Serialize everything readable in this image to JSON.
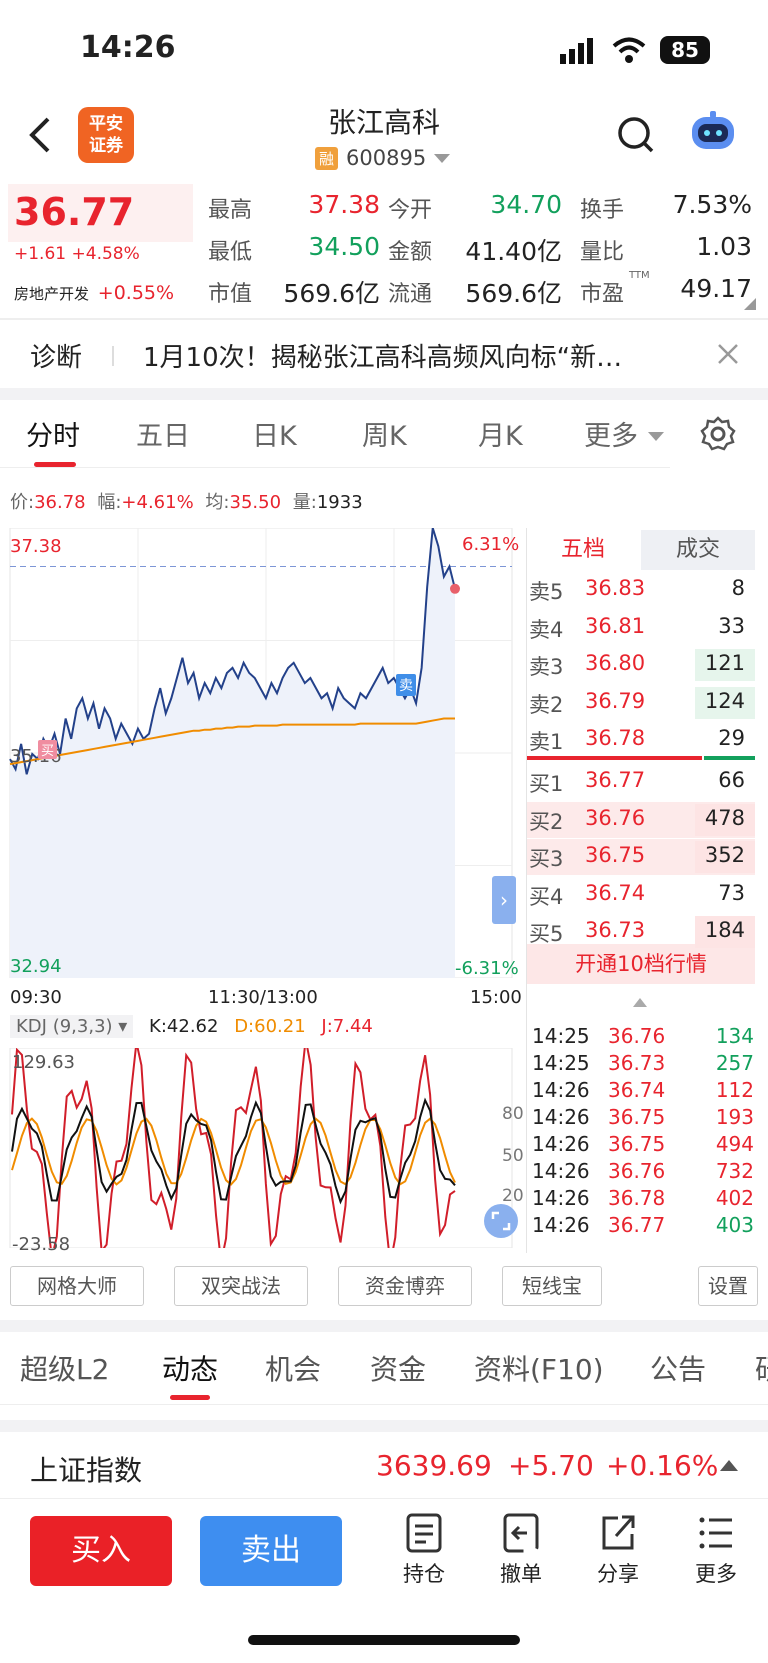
{
  "status": {
    "time": "14:26",
    "battery": "85"
  },
  "header": {
    "logo_line1": "平安",
    "logo_line2": "证券",
    "stock_name": "张江高科",
    "margin_badge": "融",
    "stock_code": "600895"
  },
  "quote": {
    "price": "36.77",
    "change": "+1.61",
    "change_pct": "+4.58%",
    "sector_label": "房地产开发",
    "sector_pct": "+0.55%",
    "stats": [
      {
        "label": "最高",
        "value": "37.38",
        "tone": "red"
      },
      {
        "label": "今开",
        "value": "34.70",
        "tone": "green"
      },
      {
        "label": "换手",
        "value": "7.53%",
        "tone": "black"
      },
      {
        "label": "最低",
        "value": "34.50",
        "tone": "green"
      },
      {
        "label": "金额",
        "value": "41.40亿",
        "tone": "black"
      },
      {
        "label": "量比",
        "value": "1.03",
        "tone": "black"
      },
      {
        "label": "市值",
        "value": "569.6亿",
        "tone": "black"
      },
      {
        "label": "流通",
        "value": "569.6亿",
        "tone": "black"
      },
      {
        "label": "市盈",
        "value": "49.17",
        "tone": "black"
      }
    ],
    "pe_sup": "TTM"
  },
  "news": {
    "tag": "诊断",
    "text": "1月10次！揭秘张江高科高频风向标“新…"
  },
  "chart_tabs": [
    "分时",
    "五日",
    "日K",
    "周K",
    "月K",
    "更多"
  ],
  "info_bar": {
    "price_label": "价:",
    "price": "36.78",
    "amp_label": "幅:",
    "amp": "+4.61%",
    "avg_label": "均:",
    "avg": "35.50",
    "vol_label": "量:",
    "vol": "1933"
  },
  "chart_data": {
    "type": "line",
    "y_top": "37.38",
    "y_mid": "35.16",
    "y_bottom": "32.94",
    "pct_top": "6.31%",
    "pct_bottom": "-6.31%",
    "x_labels": [
      "09:30",
      "11:30/13:00",
      "15:00"
    ],
    "ylim": [
      32.94,
      37.38
    ],
    "buy_marker": "买",
    "sell_marker": "卖",
    "series": [
      {
        "values": [
          35.1,
          35.0,
          35.25,
          34.95,
          35.15,
          35.1,
          35.3,
          35.2,
          35.35,
          35.15,
          35.5,
          35.3,
          35.6,
          35.7,
          35.5,
          35.65,
          35.4,
          35.6,
          35.5,
          35.3,
          35.45,
          35.35,
          35.25,
          35.4,
          35.3,
          35.35,
          35.6,
          35.8,
          35.55,
          35.7,
          35.9,
          36.1,
          35.85,
          35.95,
          35.7,
          35.85,
          35.75,
          35.9,
          35.8,
          35.95,
          36.0,
          35.9,
          36.05,
          35.95,
          35.9,
          35.8,
          35.7,
          35.85,
          35.75,
          35.9,
          36.0,
          36.05,
          35.95,
          35.85,
          35.9,
          35.8,
          35.7,
          35.75,
          35.6,
          35.8,
          35.7,
          35.65,
          35.6,
          35.75,
          35.7,
          35.8,
          35.9,
          36.0,
          35.85,
          35.9,
          35.8,
          35.7,
          35.8,
          35.65,
          36.0,
          36.8,
          37.38,
          37.2,
          36.9,
          37.0,
          36.78
        ]
      },
      {
        "values": [
          35.05,
          35.06,
          35.07,
          35.08,
          35.09,
          35.1,
          35.11,
          35.12,
          35.13,
          35.14,
          35.15,
          35.16,
          35.17,
          35.18,
          35.19,
          35.2,
          35.21,
          35.22,
          35.23,
          35.24,
          35.25,
          35.26,
          35.27,
          35.28,
          35.29,
          35.3,
          35.31,
          35.32,
          35.33,
          35.34,
          35.35,
          35.36,
          35.37,
          35.38,
          35.38,
          35.39,
          35.39,
          35.4,
          35.4,
          35.41,
          35.41,
          35.42,
          35.42,
          35.42,
          35.43,
          35.43,
          35.43,
          35.43,
          35.43,
          35.44,
          35.44,
          35.44,
          35.44,
          35.44,
          35.44,
          35.44,
          35.44,
          35.44,
          35.44,
          35.44,
          35.44,
          35.44,
          35.44,
          35.45,
          35.45,
          35.45,
          35.45,
          35.45,
          35.45,
          35.45,
          35.45,
          35.45,
          35.45,
          35.45,
          35.46,
          35.47,
          35.48,
          35.49,
          35.5,
          35.5,
          35.5
        ]
      }
    ]
  },
  "kdj": {
    "label": "KDJ (9,3,3)",
    "k": "K:42.62",
    "d": "D:60.21",
    "j": "J:7.44",
    "max": "129.63",
    "min": "-23.58",
    "levels": [
      "80",
      "50",
      "20"
    ]
  },
  "orderbook": {
    "tabs": [
      "五档",
      "成交"
    ],
    "sell": [
      {
        "label": "卖5",
        "price": "36.83",
        "vol": "8"
      },
      {
        "label": "卖4",
        "price": "36.81",
        "vol": "33"
      },
      {
        "label": "卖3",
        "price": "36.80",
        "vol": "121"
      },
      {
        "label": "卖2",
        "price": "36.79",
        "vol": "124"
      },
      {
        "label": "卖1",
        "price": "36.78",
        "vol": "29"
      }
    ],
    "buy": [
      {
        "label": "买1",
        "price": "36.77",
        "vol": "66"
      },
      {
        "label": "买2",
        "price": "36.76",
        "vol": "478"
      },
      {
        "label": "买3",
        "price": "36.75",
        "vol": "352"
      },
      {
        "label": "买4",
        "price": "36.74",
        "vol": "73"
      },
      {
        "label": "买5",
        "price": "36.73",
        "vol": "184"
      }
    ],
    "promo": "开通10档行情"
  },
  "trades": [
    {
      "time": "14:25",
      "price": "36.76",
      "vol": "134",
      "tone": "green"
    },
    {
      "time": "14:25",
      "price": "36.73",
      "vol": "257",
      "tone": "green"
    },
    {
      "time": "14:26",
      "price": "36.74",
      "vol": "112",
      "tone": "red"
    },
    {
      "time": "14:26",
      "price": "36.75",
      "vol": "193",
      "tone": "red"
    },
    {
      "time": "14:26",
      "price": "36.75",
      "vol": "494",
      "tone": "red"
    },
    {
      "time": "14:26",
      "price": "36.76",
      "vol": "732",
      "tone": "red"
    },
    {
      "time": "14:26",
      "price": "36.78",
      "vol": "402",
      "tone": "red"
    },
    {
      "time": "14:26",
      "price": "36.77",
      "vol": "403",
      "tone": "green"
    }
  ],
  "tools": [
    "网格大师",
    "双突战法",
    "资金博弈",
    "短线宝",
    "设置"
  ],
  "section_tabs": [
    "超级L2",
    "动态",
    "机会",
    "资金",
    "资料(F10)",
    "公告",
    "研"
  ],
  "index_bar": {
    "name": "上证指数",
    "value": "3639.69",
    "change": "+5.70",
    "pct": "+0.16%"
  },
  "bottom": {
    "buy": "买入",
    "sell": "卖出",
    "actions": [
      "持仓",
      "撤单",
      "分享",
      "更多"
    ]
  }
}
